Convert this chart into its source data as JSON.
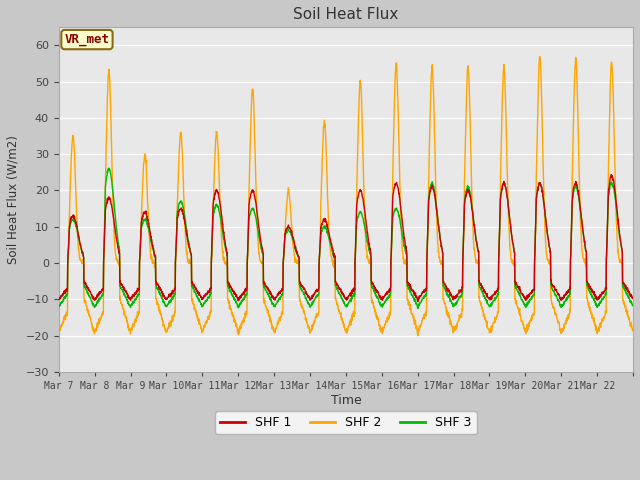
{
  "title": "Soil Heat Flux",
  "ylabel": "Soil Heat Flux (W/m2)",
  "xlabel": "Time",
  "ylim": [
    -30,
    65
  ],
  "yticks": [
    -30,
    -20,
    -10,
    0,
    10,
    20,
    30,
    40,
    50,
    60
  ],
  "colors": {
    "SHF 1": "#cc0000",
    "SHF 2": "#ffa500",
    "SHF 3": "#00bb00"
  },
  "legend_label": "VR_met",
  "plot_bg": "#e8e8e8",
  "fig_bg": "#c8c8c8",
  "n_days": 16,
  "x_tick_labels": [
    "Mar 7",
    "Mar 8",
    "Mar 9",
    "Mar 10",
    "Mar 11",
    "Mar 12",
    "Mar 13",
    "Mar 14",
    "Mar 15",
    "Mar 16",
    "Mar 17",
    "Mar 18",
    "Mar 19",
    "Mar 20",
    "Mar 21",
    "Mar 22"
  ],
  "linewidth": 1.0,
  "day_peaks2": [
    35,
    53,
    30,
    36,
    36,
    48,
    20,
    39,
    50,
    55,
    54,
    54,
    54,
    57,
    56,
    55
  ],
  "day_peaks1": [
    13,
    18,
    14,
    15,
    20,
    20,
    10,
    12,
    20,
    22,
    21,
    20,
    22,
    22,
    22,
    24
  ],
  "day_peaks3": [
    12,
    26,
    12,
    17,
    16,
    15,
    9,
    10,
    14,
    15,
    22,
    21,
    22,
    22,
    21,
    22
  ],
  "night_base1": -10,
  "night_base2": -19,
  "night_base3": -12
}
